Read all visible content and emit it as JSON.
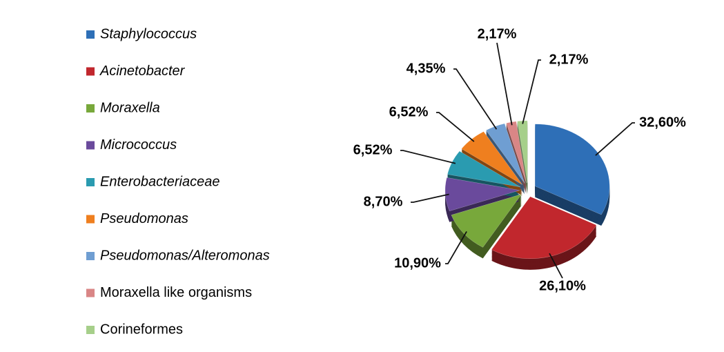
{
  "chart_data": {
    "type": "pie",
    "categories": [
      "Staphylococcus",
      "Acinetobacter",
      "Moraxella",
      "Micrococcus",
      "Enterobacteriaceae",
      "Pseudomonas",
      "Pseudomonas/Alteromonas",
      "Moraxella like organisms",
      "Corineformes"
    ],
    "values": [
      32.6,
      26.1,
      10.9,
      8.7,
      6.52,
      6.52,
      4.35,
      2.17,
      2.17
    ],
    "value_labels": [
      "32,60%",
      "26,10%",
      "10,90%",
      "8,70%",
      "6,52%",
      "6,52%",
      "4,35%",
      "2,17%",
      "2,17%"
    ],
    "colors": [
      "#2e6fb7",
      "#c1272d",
      "#78a83b",
      "#6a4a9c",
      "#2a9bb0",
      "#ef7f1f",
      "#6f9ed2",
      "#d98686",
      "#a6cf8a"
    ],
    "legend": "left"
  }
}
